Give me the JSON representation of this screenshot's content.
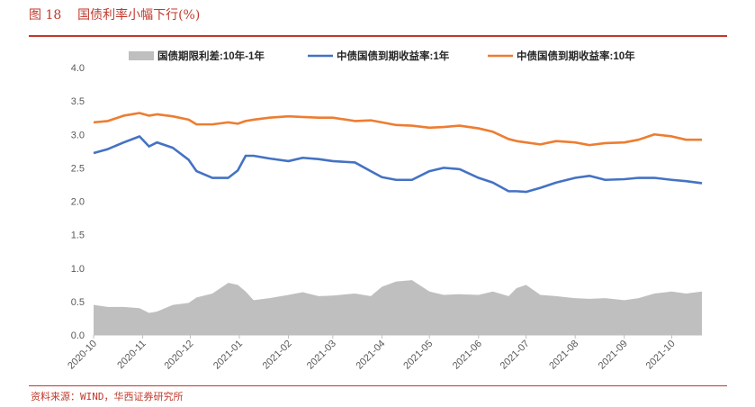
{
  "header": {
    "figure_label": "图 18",
    "title": "国债利率小幅下行(%)"
  },
  "footer": {
    "source": "资料来源：WIND，华西证券研究所"
  },
  "colors": {
    "accent": "#c0392b",
    "area": "#bfbfbf",
    "line_1y": "#4472c4",
    "line_10y": "#ed7d31"
  },
  "chart_data": {
    "type": "line",
    "ylim": [
      0.0,
      4.0
    ],
    "y_ticks": [
      "0.0",
      "0.5",
      "1.0",
      "1.5",
      "2.0",
      "2.5",
      "3.0",
      "3.5",
      "4.0"
    ],
    "x_range": [
      "2020-10-01",
      "2021-10-20"
    ],
    "x_tick_labels": [
      "2020-10",
      "2020-11",
      "2020-12",
      "2021-01",
      "2021-02",
      "2021-03",
      "2021-04",
      "2021-05",
      "2021-06",
      "2021-07",
      "2021-08",
      "2021-09",
      "2021-10"
    ],
    "legend_position": "top",
    "series": [
      {
        "name": "国债期限利差:10年-1年",
        "kind": "area",
        "x": [
          "2020-10-01",
          "2020-10-10",
          "2020-10-20",
          "2020-10-30",
          "2020-11-05",
          "2020-11-10",
          "2020-11-20",
          "2020-11-30",
          "2020-12-05",
          "2020-12-15",
          "2020-12-25",
          "2020-12-31",
          "2021-01-05",
          "2021-01-10",
          "2021-01-20",
          "2021-02-01",
          "2021-02-10",
          "2021-02-20",
          "2021-03-01",
          "2021-03-15",
          "2021-03-25",
          "2021-04-01",
          "2021-04-10",
          "2021-04-20",
          "2021-05-01",
          "2021-05-10",
          "2021-05-20",
          "2021-06-01",
          "2021-06-10",
          "2021-06-20",
          "2021-06-25",
          "2021-07-01",
          "2021-07-10",
          "2021-07-20",
          "2021-08-01",
          "2021-08-10",
          "2021-08-20",
          "2021-09-01",
          "2021-09-10",
          "2021-09-20",
          "2021-10-01",
          "2021-10-10",
          "2021-10-20"
        ],
        "values": [
          0.45,
          0.42,
          0.42,
          0.4,
          0.33,
          0.35,
          0.45,
          0.48,
          0.56,
          0.62,
          0.78,
          0.75,
          0.65,
          0.52,
          0.55,
          0.6,
          0.64,
          0.58,
          0.59,
          0.62,
          0.58,
          0.72,
          0.8,
          0.82,
          0.65,
          0.6,
          0.61,
          0.6,
          0.65,
          0.58,
          0.7,
          0.75,
          0.6,
          0.58,
          0.55,
          0.54,
          0.55,
          0.52,
          0.55,
          0.62,
          0.65,
          0.62,
          0.65
        ]
      },
      {
        "name": "中债国债到期收益率:1年",
        "kind": "line",
        "x": [
          "2020-10-01",
          "2020-10-10",
          "2020-10-20",
          "2020-10-30",
          "2020-11-05",
          "2020-11-10",
          "2020-11-20",
          "2020-11-30",
          "2020-12-05",
          "2020-12-15",
          "2020-12-25",
          "2020-12-31",
          "2021-01-05",
          "2021-01-10",
          "2021-01-20",
          "2021-02-01",
          "2021-02-10",
          "2021-02-20",
          "2021-03-01",
          "2021-03-15",
          "2021-03-25",
          "2021-04-01",
          "2021-04-10",
          "2021-04-20",
          "2021-05-01",
          "2021-05-10",
          "2021-05-20",
          "2021-06-01",
          "2021-06-10",
          "2021-06-20",
          "2021-06-25",
          "2021-07-01",
          "2021-07-10",
          "2021-07-20",
          "2021-08-01",
          "2021-08-10",
          "2021-08-20",
          "2021-09-01",
          "2021-09-10",
          "2021-09-20",
          "2021-10-01",
          "2021-10-10",
          "2021-10-20"
        ],
        "values": [
          2.72,
          2.78,
          2.88,
          2.97,
          2.82,
          2.88,
          2.8,
          2.62,
          2.45,
          2.35,
          2.35,
          2.46,
          2.68,
          2.68,
          2.64,
          2.6,
          2.65,
          2.63,
          2.6,
          2.58,
          2.45,
          2.36,
          2.32,
          2.32,
          2.45,
          2.5,
          2.48,
          2.35,
          2.28,
          2.15,
          2.15,
          2.14,
          2.2,
          2.28,
          2.35,
          2.38,
          2.32,
          2.33,
          2.35,
          2.35,
          2.32,
          2.3,
          2.27
        ]
      },
      {
        "name": "中债国债到期收益率:10年",
        "kind": "line",
        "x": [
          "2020-10-01",
          "2020-10-10",
          "2020-10-20",
          "2020-10-30",
          "2020-11-05",
          "2020-11-10",
          "2020-11-20",
          "2020-11-30",
          "2020-12-05",
          "2020-12-15",
          "2020-12-25",
          "2020-12-31",
          "2021-01-05",
          "2021-01-10",
          "2021-01-20",
          "2021-02-01",
          "2021-02-10",
          "2021-02-20",
          "2021-03-01",
          "2021-03-15",
          "2021-03-25",
          "2021-04-01",
          "2021-04-10",
          "2021-04-20",
          "2021-05-01",
          "2021-05-10",
          "2021-05-20",
          "2021-06-01",
          "2021-06-10",
          "2021-06-20",
          "2021-06-25",
          "2021-07-01",
          "2021-07-10",
          "2021-07-20",
          "2021-08-01",
          "2021-08-10",
          "2021-08-20",
          "2021-09-01",
          "2021-09-10",
          "2021-09-20",
          "2021-10-01",
          "2021-10-10",
          "2021-10-20"
        ],
        "values": [
          3.18,
          3.2,
          3.28,
          3.32,
          3.28,
          3.3,
          3.27,
          3.22,
          3.15,
          3.15,
          3.18,
          3.16,
          3.2,
          3.22,
          3.25,
          3.27,
          3.26,
          3.25,
          3.25,
          3.2,
          3.21,
          3.18,
          3.14,
          3.13,
          3.1,
          3.11,
          3.13,
          3.09,
          3.04,
          2.93,
          2.9,
          2.88,
          2.85,
          2.9,
          2.88,
          2.84,
          2.87,
          2.88,
          2.92,
          3.0,
          2.97,
          2.92,
          2.92
        ]
      }
    ]
  }
}
